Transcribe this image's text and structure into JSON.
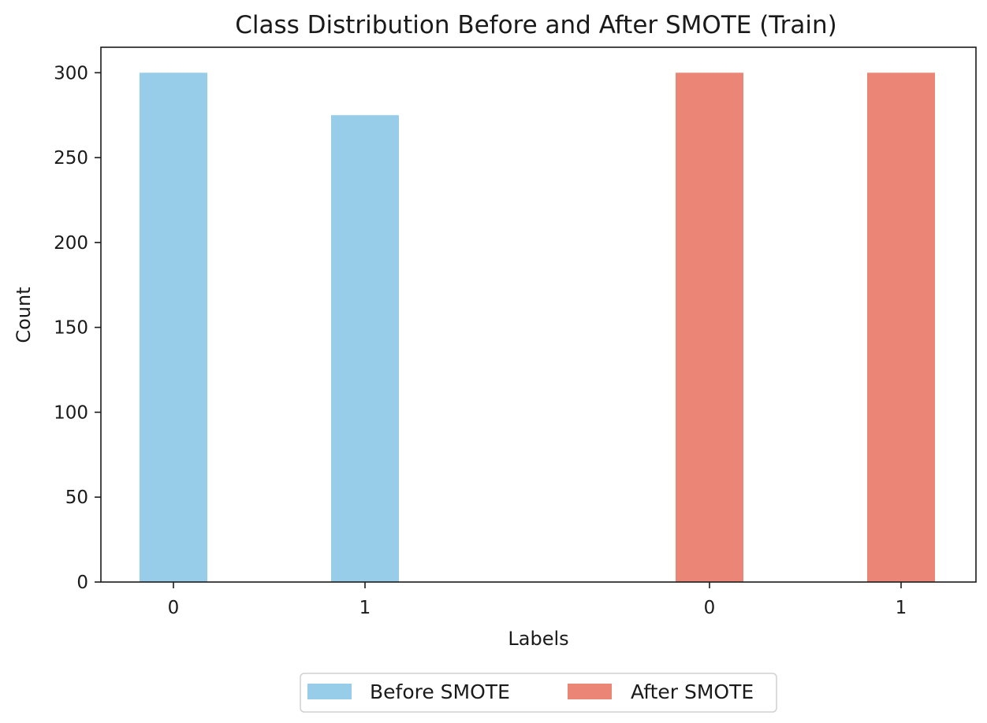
{
  "chart_data": {
    "type": "bar",
    "title": "Class Distribution Before and After SMOTE (Train)",
    "xlabel": "Labels",
    "ylabel": "Count",
    "ylim": [
      0,
      315
    ],
    "yticks": [
      0,
      50,
      100,
      150,
      200,
      250,
      300
    ],
    "grid": false,
    "legend_position": "bottom-center-outside",
    "series": [
      {
        "name": "Before SMOTE",
        "color": "#97cde9",
        "categories": [
          "0",
          "1"
        ],
        "values": [
          300,
          275
        ]
      },
      {
        "name": "After SMOTE",
        "color": "#eb8676",
        "categories": [
          "0",
          "1"
        ],
        "values": [
          300,
          300
        ]
      }
    ]
  }
}
